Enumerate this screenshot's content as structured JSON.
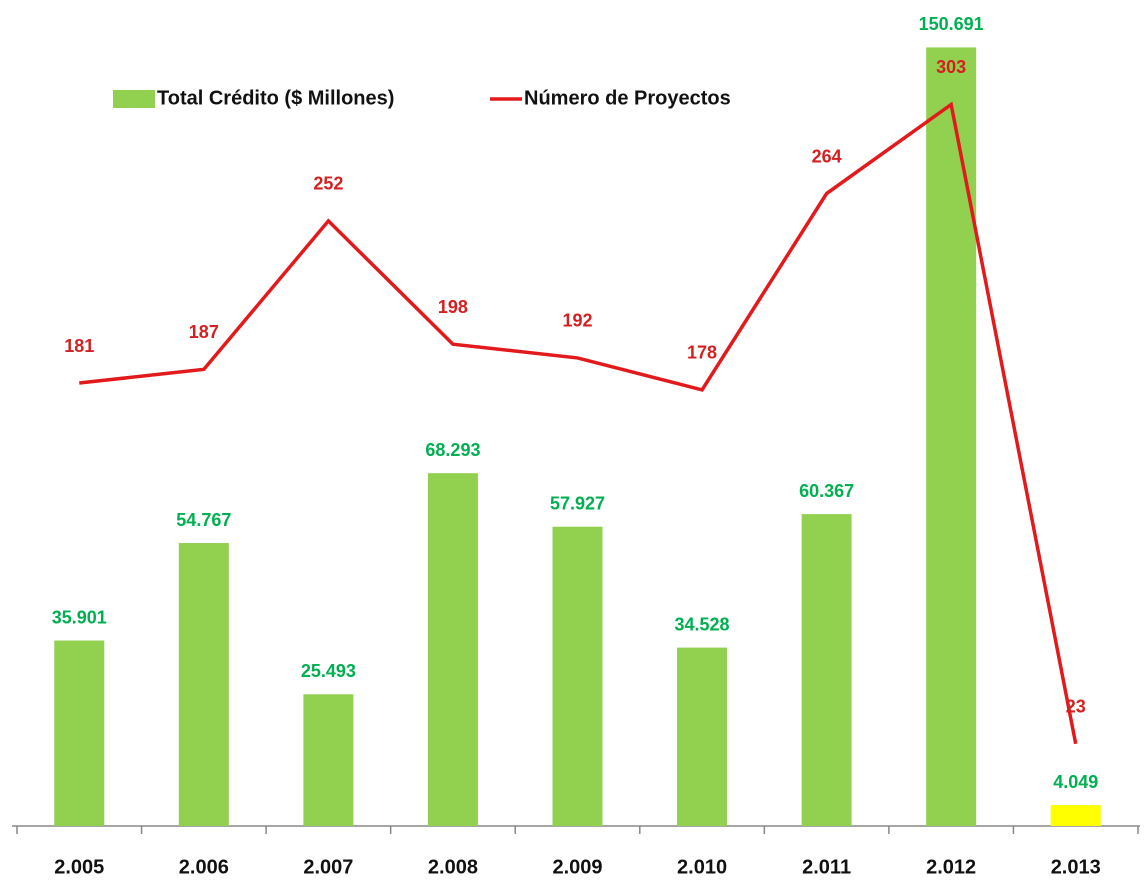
{
  "chart_data": {
    "type": "bar",
    "categories": [
      "2.005",
      "2.006",
      "2.007",
      "2.008",
      "2.009",
      "2.010",
      "2.011",
      "2.012",
      "2.013"
    ],
    "series": [
      {
        "name": "Total Crédito ($ Millones)",
        "type": "bar",
        "color": "#92d050",
        "colors": [
          "#92d050",
          "#92d050",
          "#92d050",
          "#92d050",
          "#92d050",
          "#92d050",
          "#92d050",
          "#92d050",
          "#ffff00"
        ],
        "label_color": "#00b050",
        "values": [
          35901,
          54767,
          25493,
          68293,
          57927,
          34528,
          60367,
          150691,
          4049
        ],
        "value_labels": [
          "35.901",
          "54.767",
          "25.493",
          "68.293",
          "57.927",
          "34.528",
          "60.367",
          "150.691",
          "4.049"
        ]
      },
      {
        "name": "Número de Proyectos",
        "type": "line",
        "axis": "y2",
        "color": "#e31a1c",
        "label_color": "#d42020",
        "values": [
          181,
          187,
          252,
          198,
          192,
          178,
          264,
          303,
          23
        ]
      }
    ],
    "ylim": [
      0,
      156000
    ],
    "y2lim": [
      -13,
      340
    ]
  }
}
